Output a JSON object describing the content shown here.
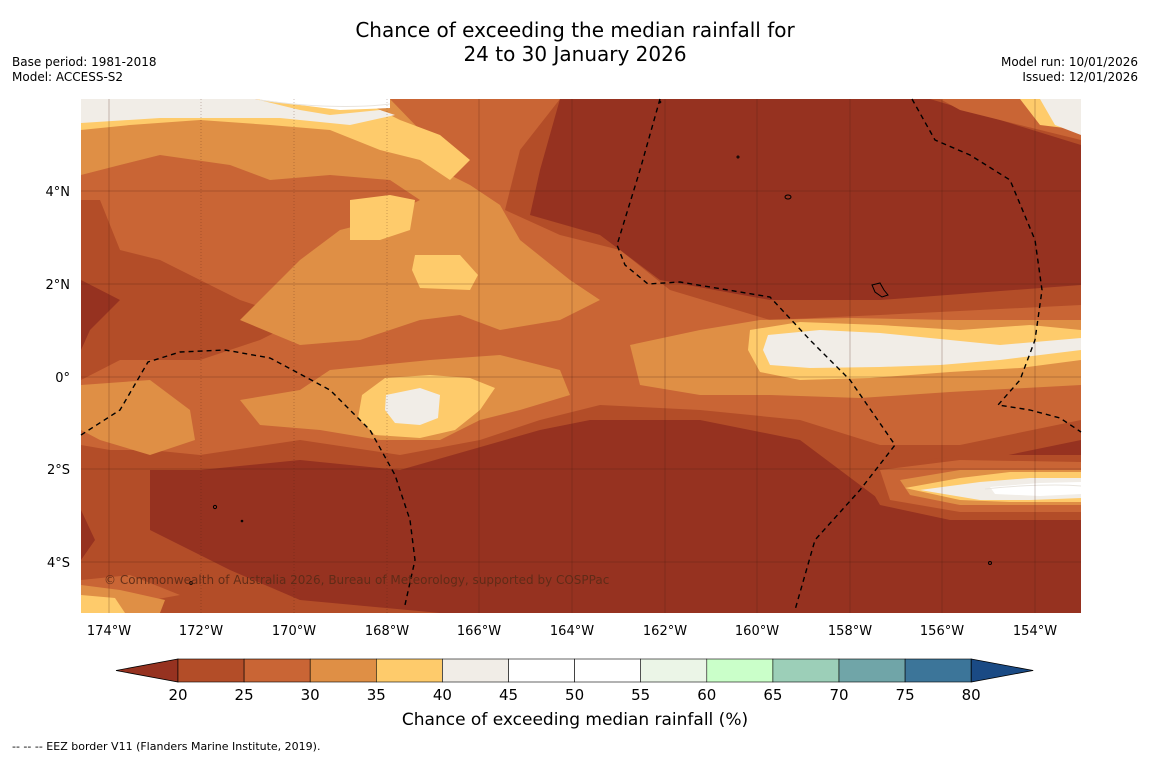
{
  "title": {
    "line1": "Chance of exceeding the median rainfall for",
    "line2": "24 to 30 January 2026"
  },
  "meta_left": {
    "base_period": "Base period: 1981-2018",
    "model": "Model: ACCESS-S2"
  },
  "meta_right": {
    "model_run": "Model run: 10/01/2026",
    "issued": "Issued: 12/01/2026"
  },
  "map": {
    "lon_ticks": [
      "174°W",
      "172°W",
      "170°W",
      "168°W",
      "166°W",
      "164°W",
      "162°W",
      "160°W",
      "158°W",
      "156°W",
      "154°W"
    ],
    "lat_ticks": [
      "4°N",
      "2°N",
      "0°",
      "2°S",
      "4°S"
    ],
    "copyright": "© Commonwealth of Australia 2026, Bureau of Meteorology, supported by COSPPac"
  },
  "colorbar": {
    "ticks": [
      "20",
      "25",
      "30",
      "35",
      "40",
      "45",
      "50",
      "55",
      "60",
      "65",
      "70",
      "75",
      "80"
    ],
    "colors": [
      "#963220",
      "#b34d28",
      "#c96535",
      "#df8f45",
      "#fecb6b",
      "#f1ede7",
      "#ffffff",
      "#ffffff",
      "#ebf5e7",
      "#caffc9",
      "#9ccfb8",
      "#70a5a8",
      "#3c7599",
      "#1a4a84"
    ],
    "label": "Chance of exceeding median rainfall (%)"
  },
  "footnote": "--  --  -- EEZ border V11 (Flanders Marine Institute, 2019)."
}
